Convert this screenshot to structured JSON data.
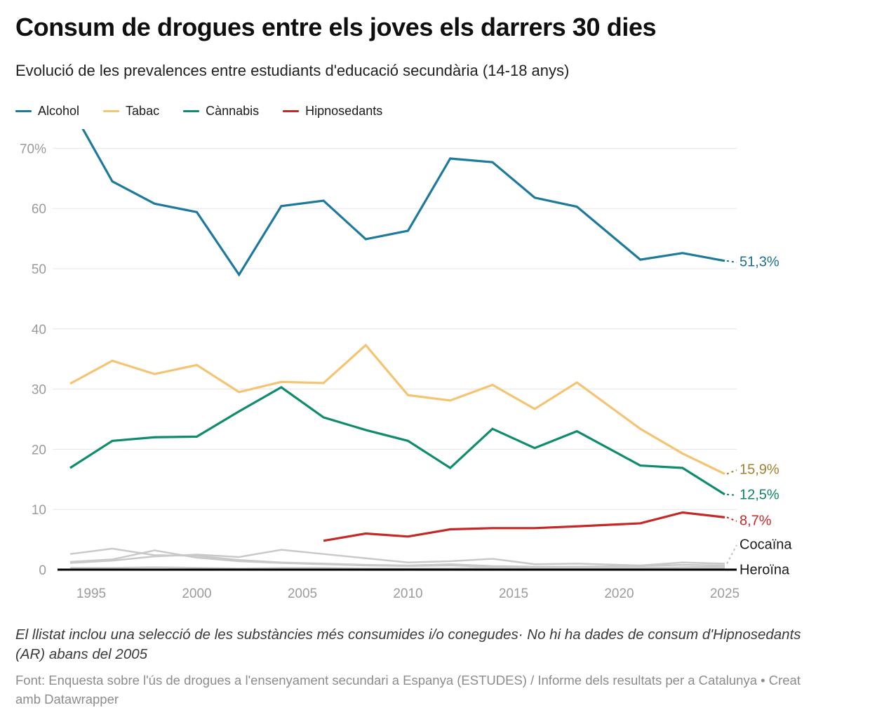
{
  "header": {
    "title": "Consum de drogues entre els joves els darrers 30 dies",
    "subtitle": "Evolució de les prevalences entre estudiants d'educació secundària (14-18 anys)"
  },
  "legend": {
    "items": [
      {
        "label": "Alcohol",
        "color": "#1e7a9c"
      },
      {
        "label": "Tabac",
        "color": "#f5c473"
      },
      {
        "label": "Cànnabis",
        "color": "#0e8c6d"
      },
      {
        "label": "Hipnosedants",
        "color": "#c62828"
      }
    ]
  },
  "chart_data": {
    "type": "line",
    "x": [
      1994,
      1996,
      1998,
      2000,
      2002,
      2004,
      2006,
      2008,
      2010,
      2012,
      2014,
      2016,
      2018,
      2021,
      2023,
      2025
    ],
    "x_ticks": [
      {
        "value": 1995,
        "label": "1995"
      },
      {
        "value": 2000,
        "label": "2000"
      },
      {
        "value": 2005,
        "label": "2005"
      },
      {
        "value": 2010,
        "label": "2010"
      },
      {
        "value": 2015,
        "label": "2015"
      },
      {
        "value": 2020,
        "label": "2020"
      },
      {
        "value": 2025,
        "label": "2025"
      }
    ],
    "y_ticks": [
      {
        "value": 70,
        "label": "70%"
      },
      {
        "value": 60,
        "label": "60"
      },
      {
        "value": 50,
        "label": "50"
      },
      {
        "value": 40,
        "label": "40"
      },
      {
        "value": 30,
        "label": "30"
      },
      {
        "value": 20,
        "label": "20"
      },
      {
        "value": 10,
        "label": "10"
      },
      {
        "value": 0,
        "label": "0"
      }
    ],
    "ylim": [
      0,
      73
    ],
    "grid": "horizontal",
    "legend_position": "top",
    "series": [
      {
        "name": "",
        "color": "#c9c9c9",
        "end_label": null,
        "values": [
          2.6,
          3.5,
          2.4,
          2.3,
          1.6,
          1.2,
          1.0,
          0.8,
          0.7,
          0.9,
          0.6,
          0.5,
          0.5,
          0.6,
          0.8,
          0.7
        ]
      },
      {
        "name": "",
        "color": "#c9c9c9",
        "end_label": null,
        "values": [
          1.3,
          1.7,
          3.2,
          2.0,
          1.4,
          1.1,
          0.9,
          0.7,
          0.6,
          0.7,
          0.5,
          0.4,
          0.4,
          0.3,
          0.4,
          0.5
        ]
      },
      {
        "name": "Cocaïna",
        "color": "#c9c9c9",
        "label_color": "#1a1a1a",
        "end_label": "Cocaïna",
        "values": [
          1.1,
          1.5,
          2.2,
          2.5,
          2.1,
          3.3,
          2.6,
          1.9,
          1.2,
          1.4,
          1.8,
          0.9,
          1.0,
          0.7,
          1.2,
          1.0
        ]
      },
      {
        "name": "Heroïna",
        "color": "#c9c9c9",
        "label_color": "#1a1a1a",
        "end_label": "Heroïna",
        "values": [
          0.3,
          0.3,
          0.4,
          0.3,
          0.2,
          0.3,
          0.3,
          0.2,
          0.2,
          0.2,
          0.3,
          0.2,
          0.2,
          0.1,
          0.2,
          0.2
        ]
      },
      {
        "name": "Alcohol",
        "color": "#1e7a9c",
        "label_color": "#1d7092",
        "end_label": "51,3%",
        "values": [
          77.0,
          64.5,
          60.8,
          59.4,
          49.0,
          60.4,
          61.3,
          54.9,
          56.3,
          68.3,
          67.7,
          61.8,
          60.3,
          51.5,
          52.6,
          51.3
        ]
      },
      {
        "name": "Tabac",
        "color": "#f5c473",
        "label_color": "#a2812e",
        "end_label": "15,9%",
        "values": [
          30.9,
          34.7,
          32.5,
          34.0,
          29.5,
          31.2,
          31.0,
          37.3,
          29.0,
          28.1,
          30.7,
          26.7,
          31.1,
          23.4,
          19.3,
          15.9
        ]
      },
      {
        "name": "Cànnabis",
        "color": "#0e8c6d",
        "label_color": "#0d8566",
        "end_label": "12,5%",
        "values": [
          16.9,
          21.4,
          22.0,
          22.1,
          26.3,
          30.3,
          25.3,
          23.2,
          21.4,
          16.9,
          23.4,
          20.2,
          23.0,
          17.3,
          16.9,
          12.5
        ]
      },
      {
        "name": "Hipnosedants",
        "color": "#c62828",
        "label_color": "#c62828",
        "end_label": "8,7%",
        "values": [
          null,
          null,
          null,
          null,
          null,
          null,
          4.8,
          6.0,
          5.5,
          6.7,
          6.9,
          6.9,
          7.2,
          7.7,
          9.5,
          8.7
        ]
      }
    ]
  },
  "footer": {
    "note": "El llistat inclou una selecció de les substàncies més consumides i/o conegudes· No hi ha dades de consum d'Hipnosedants (AR) abans del 2005",
    "source": "Font: Enquesta sobre l'ús de drogues a l'ensenyament secundari a Espanya (ESTUDES) / Informe dels resultats per a Catalunya • Creat amb Datawrapper"
  }
}
